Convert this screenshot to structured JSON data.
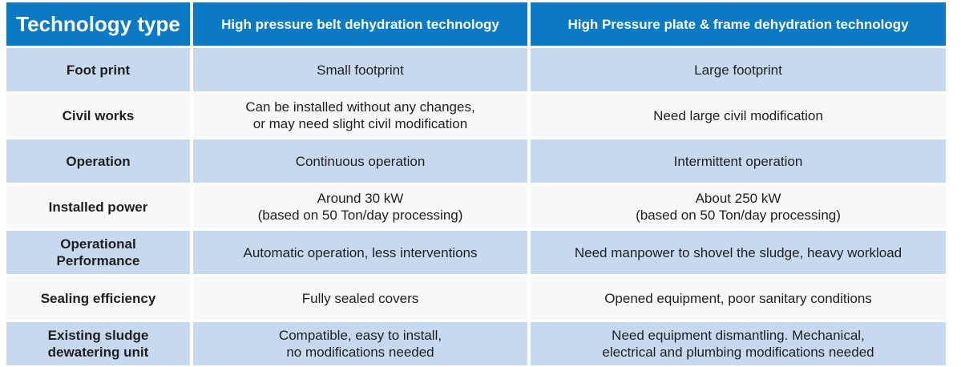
{
  "colors": {
    "header_bg": "#0b79c3",
    "header_text": "#ffffff",
    "row_blue": "#c7d9ef",
    "row_light": "#f8f8f7",
    "cell_text": "#1f1f1f"
  },
  "table": {
    "columns": {
      "corner": "Technology type",
      "belt": "High pressure belt dehydration technology",
      "plate": "High Pressure plate & frame dehydration technology"
    },
    "rows": [
      {
        "label": "Foot print",
        "belt": "Small footprint",
        "plate": "Large footprint"
      },
      {
        "label": "Civil works",
        "belt": "Can be installed without any changes,\nor may need slight civil modification",
        "plate": "Need large civil modification"
      },
      {
        "label": "Operation",
        "belt": "Continuous operation",
        "plate": "Intermittent operation"
      },
      {
        "label": "Installed power",
        "belt": "Around 30 kW\n(based on 50 Ton/day processing)",
        "plate": "About 250 kW\n(based on 50 Ton/day processing)"
      },
      {
        "label": "Operational\nPerformance",
        "belt": "Automatic operation, less interventions",
        "plate": "Need manpower to shovel the sludge, heavy workload"
      },
      {
        "label": "Sealing efficiency",
        "belt": "Fully sealed covers",
        "plate": "Opened equipment, poor sanitary conditions"
      },
      {
        "label": "Existing sludge\ndewatering unit",
        "belt": "Compatible, easy to install,\nno modifications needed",
        "plate": "Need equipment dismantling. Mechanical,\nelectrical and plumbing  modifications needed"
      }
    ]
  }
}
